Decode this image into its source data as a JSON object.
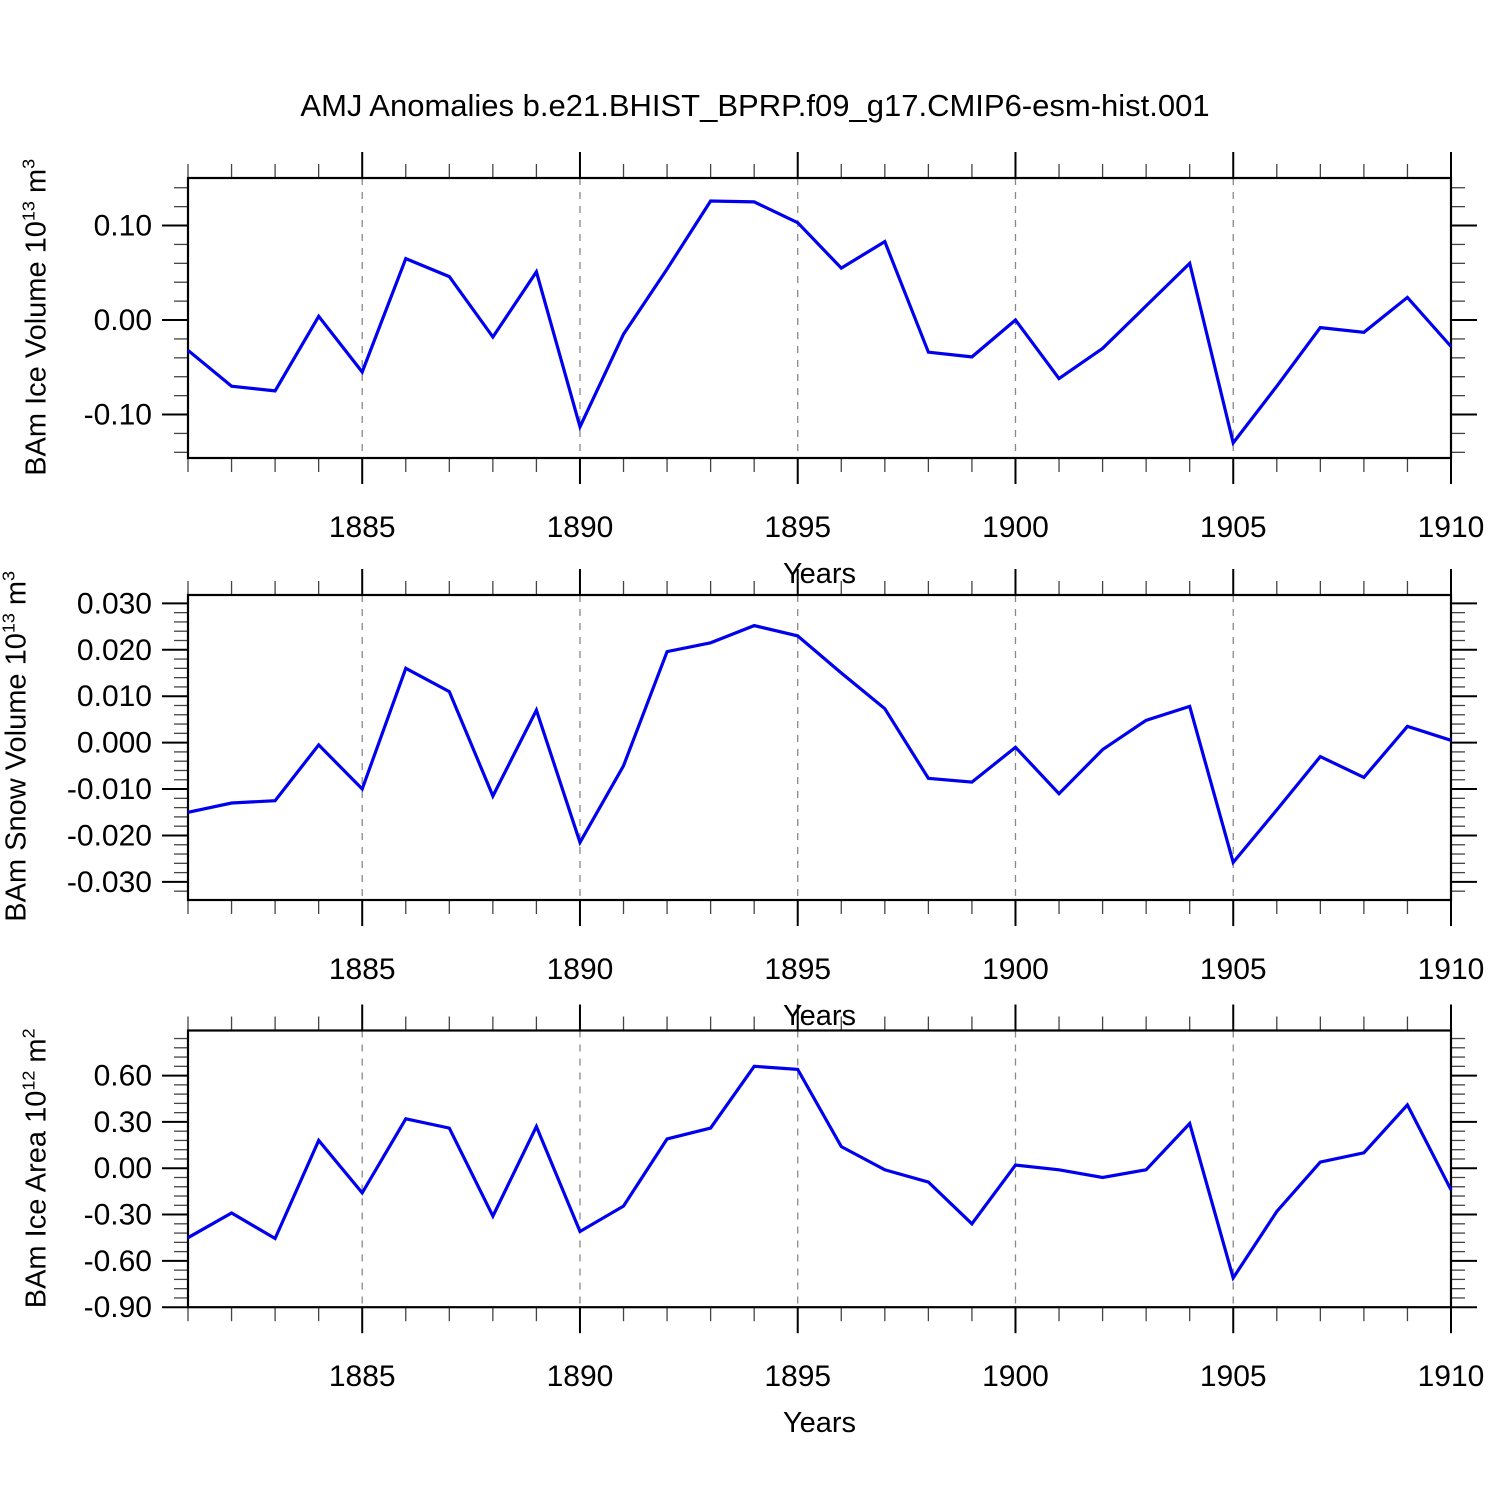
{
  "title": "AMJ Anomalies b.e21.BHIST_BPRP.f09_g17.CMIP6-esm-hist.001",
  "colors": {
    "line": "#0000ee",
    "grid": "#888888",
    "axis": "#000000",
    "background": "#ffffff"
  },
  "chart_data": {
    "type": "line",
    "xlim": [
      1881,
      1910
    ],
    "x": [
      1881,
      1882,
      1883,
      1884,
      1885,
      1886,
      1887,
      1888,
      1889,
      1890,
      1891,
      1892,
      1893,
      1894,
      1895,
      1896,
      1897,
      1898,
      1899,
      1900,
      1901,
      1902,
      1903,
      1904,
      1905,
      1906,
      1907,
      1908,
      1909,
      1910
    ],
    "xticks": [
      1885,
      1890,
      1895,
      1900,
      1905,
      1910
    ],
    "x_minor_step": 1,
    "gridline_years": [
      1885,
      1890,
      1895,
      1900,
      1905
    ],
    "legend": "none",
    "grid": "vertical-dashed",
    "panels": [
      {
        "id": "bam-ice-volume",
        "ylabel": {
          "base": "BAm Ice Volume 10",
          "exp": "13",
          "unit": " m",
          "unit_exp": "3"
        },
        "xlabel": "Years",
        "ylim": [
          -0.146,
          0.1503
        ],
        "y_minor_step": 0.02,
        "y_major_step": 0.1,
        "yticks": [
          {
            "value": 0.1,
            "label": "0.10"
          },
          {
            "value": 0.0,
            "label": "0.00"
          },
          {
            "value": -0.1,
            "label": "-0.10"
          }
        ],
        "values": [
          -0.032,
          -0.07,
          -0.075,
          0.004,
          -0.055,
          0.065,
          0.046,
          -0.018,
          0.051,
          -0.113,
          -0.015,
          0.054,
          0.126,
          0.125,
          0.103,
          0.055,
          0.083,
          -0.034,
          -0.039,
          0.0,
          -0.062,
          -0.03,
          0.015,
          0.06,
          -0.13,
          -0.07,
          -0.008,
          -0.013,
          0.024,
          -0.028
        ]
      },
      {
        "id": "bam-snow-volume",
        "ylabel": {
          "base": "BAm Snow Volume 10",
          "exp": "13",
          "unit": " m",
          "unit_exp": "3"
        },
        "xlabel": "Years",
        "ylim": [
          -0.0339,
          0.0318
        ],
        "y_minor_step": 0.002,
        "y_major_step": 0.01,
        "yticks": [
          {
            "value": 0.03,
            "label": "0.030"
          },
          {
            "value": 0.02,
            "label": "0.020"
          },
          {
            "value": 0.01,
            "label": "0.010"
          },
          {
            "value": 0.0,
            "label": "0.000"
          },
          {
            "value": -0.01,
            "label": "-0.010"
          },
          {
            "value": -0.02,
            "label": "-0.020"
          },
          {
            "value": -0.03,
            "label": "-0.030"
          }
        ],
        "values": [
          -0.015,
          -0.013,
          -0.0125,
          -0.0005,
          -0.01,
          0.016,
          0.011,
          -0.0115,
          0.007,
          -0.0215,
          -0.005,
          0.0196,
          0.0215,
          0.0252,
          0.023,
          0.015,
          0.0073,
          -0.0077,
          -0.0085,
          -0.001,
          -0.011,
          -0.0015,
          0.0048,
          0.0078,
          -0.0258,
          -0.0145,
          -0.003,
          -0.0075,
          0.0035,
          0.0005
        ]
      },
      {
        "id": "bam-ice-area",
        "ylabel": {
          "base": "BAm Ice Area 10",
          "exp": "12",
          "unit": " m",
          "unit_exp": "2"
        },
        "xlabel": "Years",
        "ylim": [
          -0.9,
          0.892
        ],
        "y_minor_step": 0.06,
        "y_major_step": 0.3,
        "yticks": [
          {
            "value": 0.6,
            "label": "0.60"
          },
          {
            "value": 0.3,
            "label": "0.30"
          },
          {
            "value": 0.0,
            "label": "0.00"
          },
          {
            "value": -0.3,
            "label": "-0.30"
          },
          {
            "value": -0.6,
            "label": "-0.60"
          },
          {
            "value": -0.9,
            "label": "-0.90"
          }
        ],
        "values": [
          -0.45,
          -0.29,
          -0.455,
          0.18,
          -0.16,
          0.32,
          0.26,
          -0.31,
          0.27,
          -0.41,
          -0.245,
          0.19,
          0.26,
          0.66,
          0.64,
          0.14,
          -0.01,
          -0.09,
          -0.36,
          0.02,
          -0.01,
          -0.06,
          -0.01,
          0.29,
          -0.71,
          -0.28,
          0.04,
          0.1,
          0.41,
          -0.14
        ]
      }
    ]
  }
}
